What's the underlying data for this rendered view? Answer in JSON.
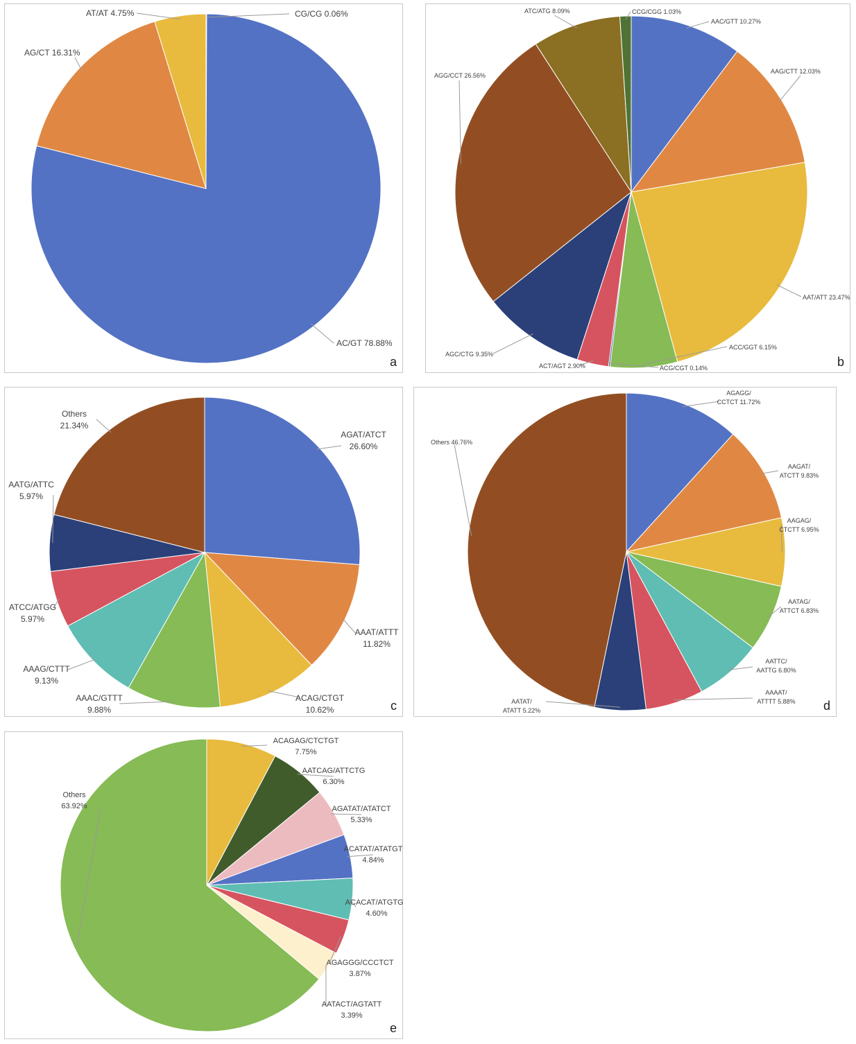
{
  "chart_data": [
    {
      "type": "pie",
      "panel_label": "a",
      "labels": [
        "CG/CG",
        "AC/GT",
        "AG/CT",
        "AT/AT"
      ],
      "values": [
        0.06,
        78.88,
        16.31,
        4.75
      ],
      "label_text": [
        [
          "CG/CG 0.06%"
        ],
        [
          "AC/GT 78.88%"
        ],
        [
          "AG/CT 16.31%"
        ],
        [
          "AT/AT 4.75%"
        ]
      ],
      "colors": [
        "#6aa84f",
        "#5472c4",
        "#e08843",
        "#e8bb3e"
      ],
      "start_angle_deg": 0,
      "direction": "clockwise"
    },
    {
      "type": "pie",
      "panel_label": "b",
      "labels": [
        "AAC/GTT",
        "AAG/CTT",
        "AAT/ATT",
        "ACC/GGT",
        "ACG/CGT",
        "ACT/AGT",
        "AGC/CTG",
        "AGG/CCT",
        "ATC/ATG",
        "CCG/CGG"
      ],
      "values": [
        10.27,
        12.03,
        23.47,
        6.15,
        0.14,
        2.9,
        9.35,
        26.56,
        8.09,
        1.03
      ],
      "label_text": [
        [
          "AAC/GTT 10.27%"
        ],
        [
          "AAG/CTT 12.03%"
        ],
        [
          "AAT/ATT 23.47%"
        ],
        [
          "ACC/GGT 6.15%"
        ],
        [
          "ACG/CGT 0.14%"
        ],
        [
          "ACT/AGT 2.90%"
        ],
        [
          "AGC/CTG 9.35%"
        ],
        [
          "AGG/CCT 26.56%"
        ],
        [
          "ATC/ATG 8.09%"
        ],
        [
          "CCG/CGG 1.03%"
        ]
      ],
      "colors": [
        "#5472c4",
        "#e08843",
        "#e8bb3e",
        "#86bb55",
        "#3d5fa0",
        "#d6545f",
        "#2b4079",
        "#924e22",
        "#8b6f22",
        "#4f7334"
      ],
      "start_angle_deg": 0,
      "direction": "clockwise"
    },
    {
      "type": "pie",
      "panel_label": "c",
      "labels": [
        "AGAT/ATCT",
        "AAAT/ATTT",
        "ACAG/CTGT",
        "AAAC/GTTT",
        "AAAG/CTTT",
        "ATCC/ATGG",
        "AATG/ATTC",
        "Others"
      ],
      "values": [
        26.6,
        11.82,
        10.62,
        9.88,
        9.13,
        5.97,
        5.97,
        21.34
      ],
      "label_text": [
        [
          "AGAT/ATCT",
          "26.60%"
        ],
        [
          "AAAT/ATTT",
          "11.82%"
        ],
        [
          "ACAG/CTGT",
          "10.62%"
        ],
        [
          "AAAC/GTTT",
          "9.88%"
        ],
        [
          "AAAG/CTTT",
          "9.13%"
        ],
        [
          "ATCC/ATGG",
          "5.97%"
        ],
        [
          "AATG/ATTC",
          "5.97%"
        ],
        [
          "Others",
          "21.34%"
        ]
      ],
      "colors": [
        "#5472c4",
        "#e08843",
        "#e8bb3e",
        "#86bb55",
        "#5fbdb3",
        "#d6545f",
        "#2b4079",
        "#924e22"
      ],
      "start_angle_deg": 0,
      "direction": "clockwise"
    },
    {
      "type": "pie",
      "panel_label": "d",
      "labels": [
        "AGAGG/CCTCT",
        "AAGAT/ATCTT",
        "AAGAG/CTCTT",
        "AATAG/ATTCT",
        "AATTC/AATTG",
        "AAAAT/ATTTT",
        "AATAT/ATATT",
        "Others"
      ],
      "values": [
        11.72,
        9.83,
        6.95,
        6.83,
        6.8,
        5.88,
        5.22,
        46.76
      ],
      "label_text": [
        [
          "AGAGG/",
          "CCTCT 11.72%"
        ],
        [
          "AAGAT/",
          "ATCTT 9.83%"
        ],
        [
          "AAGAG/",
          "CTCTT 6.95%"
        ],
        [
          "AATAG/",
          "ATTCT 6.83%"
        ],
        [
          "AATTC/",
          "AATTG 6.80%"
        ],
        [
          "AAAAT/",
          "ATTTT 5.88%"
        ],
        [
          "AATAT/",
          "ATATT 5.22%"
        ],
        [
          "Others 46.76%"
        ]
      ],
      "colors": [
        "#5472c4",
        "#e08843",
        "#e8bb3e",
        "#86bb55",
        "#5fbdb3",
        "#d6545f",
        "#2b4079",
        "#924e22"
      ],
      "start_angle_deg": 0,
      "direction": "clockwise"
    },
    {
      "type": "pie",
      "panel_label": "e",
      "labels": [
        "ACAGAG/CTCTGT",
        "AATCAG/ATTCTG",
        "AGATAT/ATATCT",
        "ACATAT/ATATGT",
        "ACACAT/ATGTGT",
        "AGAGGG/CCCTCT",
        "AATACT/AGTATT",
        "Others"
      ],
      "values": [
        7.75,
        6.3,
        5.33,
        4.84,
        4.6,
        3.87,
        3.39,
        63.92
      ],
      "label_text": [
        [
          "ACAGAG/CTCTGT",
          "7.75%"
        ],
        [
          "AATCAG/ATTCTG",
          "6.30%"
        ],
        [
          "AGATAT/ATATCT",
          "5.33%"
        ],
        [
          "ACATAT/ATATGT",
          "4.84%"
        ],
        [
          "ACACAT/ATGTGT",
          "4.60%"
        ],
        [
          "AGAGGG/CCCTCT",
          "3.87%"
        ],
        [
          "AATACT/AGTATT",
          "3.39%"
        ],
        [
          "Others",
          "63.92%"
        ]
      ],
      "colors": [
        "#e8bb3e",
        "#405c2b",
        "#ecbbc0",
        "#5472c4",
        "#5fbdb3",
        "#d6545f",
        "#fdf0cc",
        "#86bb55"
      ],
      "start_angle_deg": 0,
      "direction": "clockwise"
    }
  ]
}
